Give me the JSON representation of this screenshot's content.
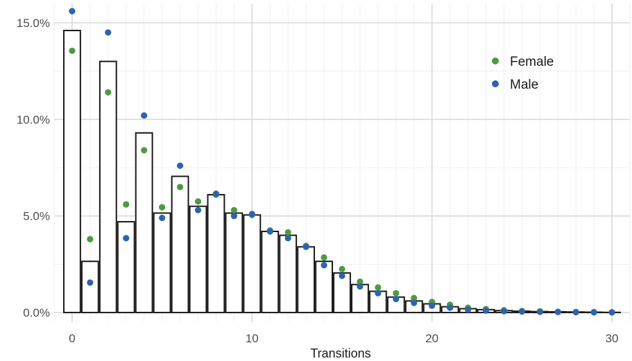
{
  "chart_data": {
    "type": "bar",
    "xlabel": "Transitions",
    "ylabel": "",
    "xlim": [
      -1,
      31
    ],
    "ylim": [
      -0.5,
      16.0
    ],
    "x_ticks": [
      0,
      10,
      20,
      30
    ],
    "y_ticks": [
      0,
      5,
      10,
      15
    ],
    "y_tick_labels": [
      "0.0%",
      "5.0%",
      "10.0%",
      "15.0%"
    ],
    "grid": true,
    "legend": {
      "position": "top-right",
      "entries": [
        "Female",
        "Male"
      ]
    },
    "bars": {
      "x": [
        0,
        1,
        2,
        3,
        4,
        5,
        6,
        7,
        8,
        9,
        10,
        11,
        12,
        13,
        14,
        15,
        16,
        17,
        18,
        19,
        20,
        21,
        22,
        23,
        24,
        25,
        26,
        27,
        28,
        29,
        30
      ],
      "values": [
        14.6,
        2.65,
        13.0,
        4.7,
        9.3,
        5.15,
        7.05,
        5.5,
        6.1,
        5.15,
        5.05,
        4.2,
        4.0,
        3.4,
        2.65,
        2.05,
        1.45,
        1.1,
        0.8,
        0.6,
        0.45,
        0.3,
        0.2,
        0.15,
        0.1,
        0.07,
        0.05,
        0.04,
        0.03,
        0.02,
        0.01
      ]
    },
    "series": [
      {
        "name": "Female",
        "color": "#4e9a43",
        "x": [
          0,
          1,
          2,
          3,
          4,
          5,
          6,
          7,
          8,
          9,
          10,
          11,
          12,
          13,
          14,
          15,
          16,
          17,
          18,
          19,
          20,
          21,
          22,
          23,
          24,
          25,
          26,
          27,
          28,
          29,
          30
        ],
        "values": [
          13.55,
          3.8,
          11.4,
          5.6,
          8.4,
          5.45,
          6.5,
          5.75,
          6.1,
          5.3,
          5.05,
          4.25,
          4.15,
          3.45,
          2.85,
          2.25,
          1.6,
          1.3,
          1.0,
          0.75,
          0.55,
          0.4,
          0.25,
          0.18,
          0.12,
          0.08,
          0.06,
          0.04,
          0.03,
          0.02,
          0.01
        ]
      },
      {
        "name": "Male",
        "color": "#2f63b0",
        "x": [
          0,
          1,
          2,
          3,
          4,
          5,
          6,
          7,
          8,
          9,
          10,
          11,
          12,
          13,
          14,
          15,
          16,
          17,
          18,
          19,
          20,
          21,
          22,
          23,
          24,
          25,
          26,
          27,
          28,
          29,
          30
        ],
        "values": [
          15.6,
          1.55,
          14.5,
          3.85,
          10.2,
          4.9,
          7.6,
          5.3,
          6.15,
          5.0,
          5.1,
          4.2,
          3.85,
          3.4,
          2.45,
          1.9,
          1.35,
          1.0,
          0.7,
          0.5,
          0.35,
          0.25,
          0.15,
          0.1,
          0.07,
          0.05,
          0.04,
          0.03,
          0.02,
          0.01,
          0.01
        ]
      }
    ]
  }
}
